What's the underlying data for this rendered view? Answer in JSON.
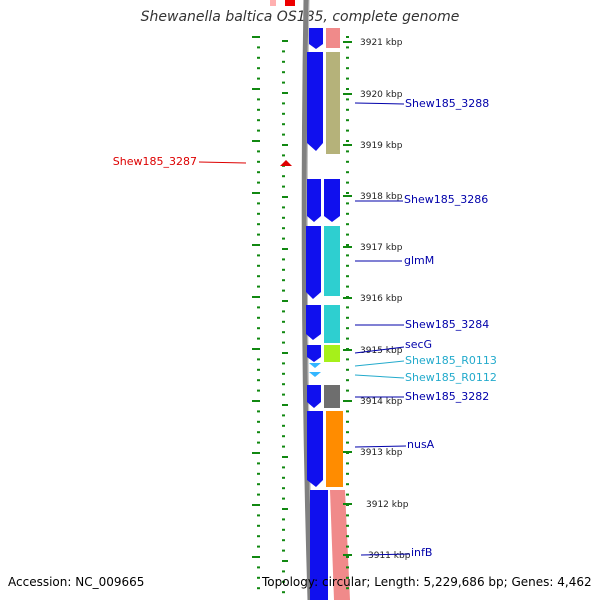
{
  "title": "Shewanella baltica OS185, complete genome",
  "footer": {
    "accession": "Accession: NC_009665",
    "topology": "Topology: circular; Length: 5,229,686 bp; Genes: 4,462"
  },
  "colors": {
    "backbone": "#777777",
    "forward_strand": "#1010ee",
    "cog_neighbor_strand": "#f08a8a",
    "gene_label_blue": "#0000aa",
    "rna_label_cyan": "#22aacc",
    "highlight_red": "#dd0000",
    "tick_green": "#118811"
  },
  "scale": {
    "ticks": [
      {
        "label": "3921 kbp"
      },
      {
        "label": "3920 kbp"
      },
      {
        "label": "3919 kbp"
      },
      {
        "label": "3918 kbp"
      },
      {
        "label": "3917 kbp"
      },
      {
        "label": "3916 kbp"
      },
      {
        "label": "3915 kbp"
      },
      {
        "label": "3914 kbp"
      },
      {
        "label": "3913 kbp"
      },
      {
        "label": "3912 kbp"
      },
      {
        "label": "3911 kbp"
      }
    ]
  },
  "labels": {
    "left": [
      {
        "text": "Shew185_3287",
        "color": "#dd0000"
      }
    ],
    "right": [
      {
        "text": "Shew185_3288",
        "color": "#0000aa"
      },
      {
        "text": "Shew185_3286",
        "color": "#0000aa"
      },
      {
        "text": "glmM",
        "color": "#0000aa"
      },
      {
        "text": "Shew185_3284",
        "color": "#0000aa"
      },
      {
        "text": "secG",
        "color": "#0000aa"
      },
      {
        "text": "Shew185_R0113",
        "color": "#22aacc"
      },
      {
        "text": "Shew185_R0112",
        "color": "#22aacc"
      },
      {
        "text": "Shew185_3282",
        "color": "#0000aa"
      },
      {
        "text": "nusA",
        "color": "#0000aa"
      },
      {
        "text": "infB",
        "color": "#0000aa"
      }
    ]
  },
  "cog_colors": [
    "#b5b27a",
    "#2ecfd0",
    "#a6f01a",
    "#6e6e6e",
    "#ff8c00"
  ]
}
